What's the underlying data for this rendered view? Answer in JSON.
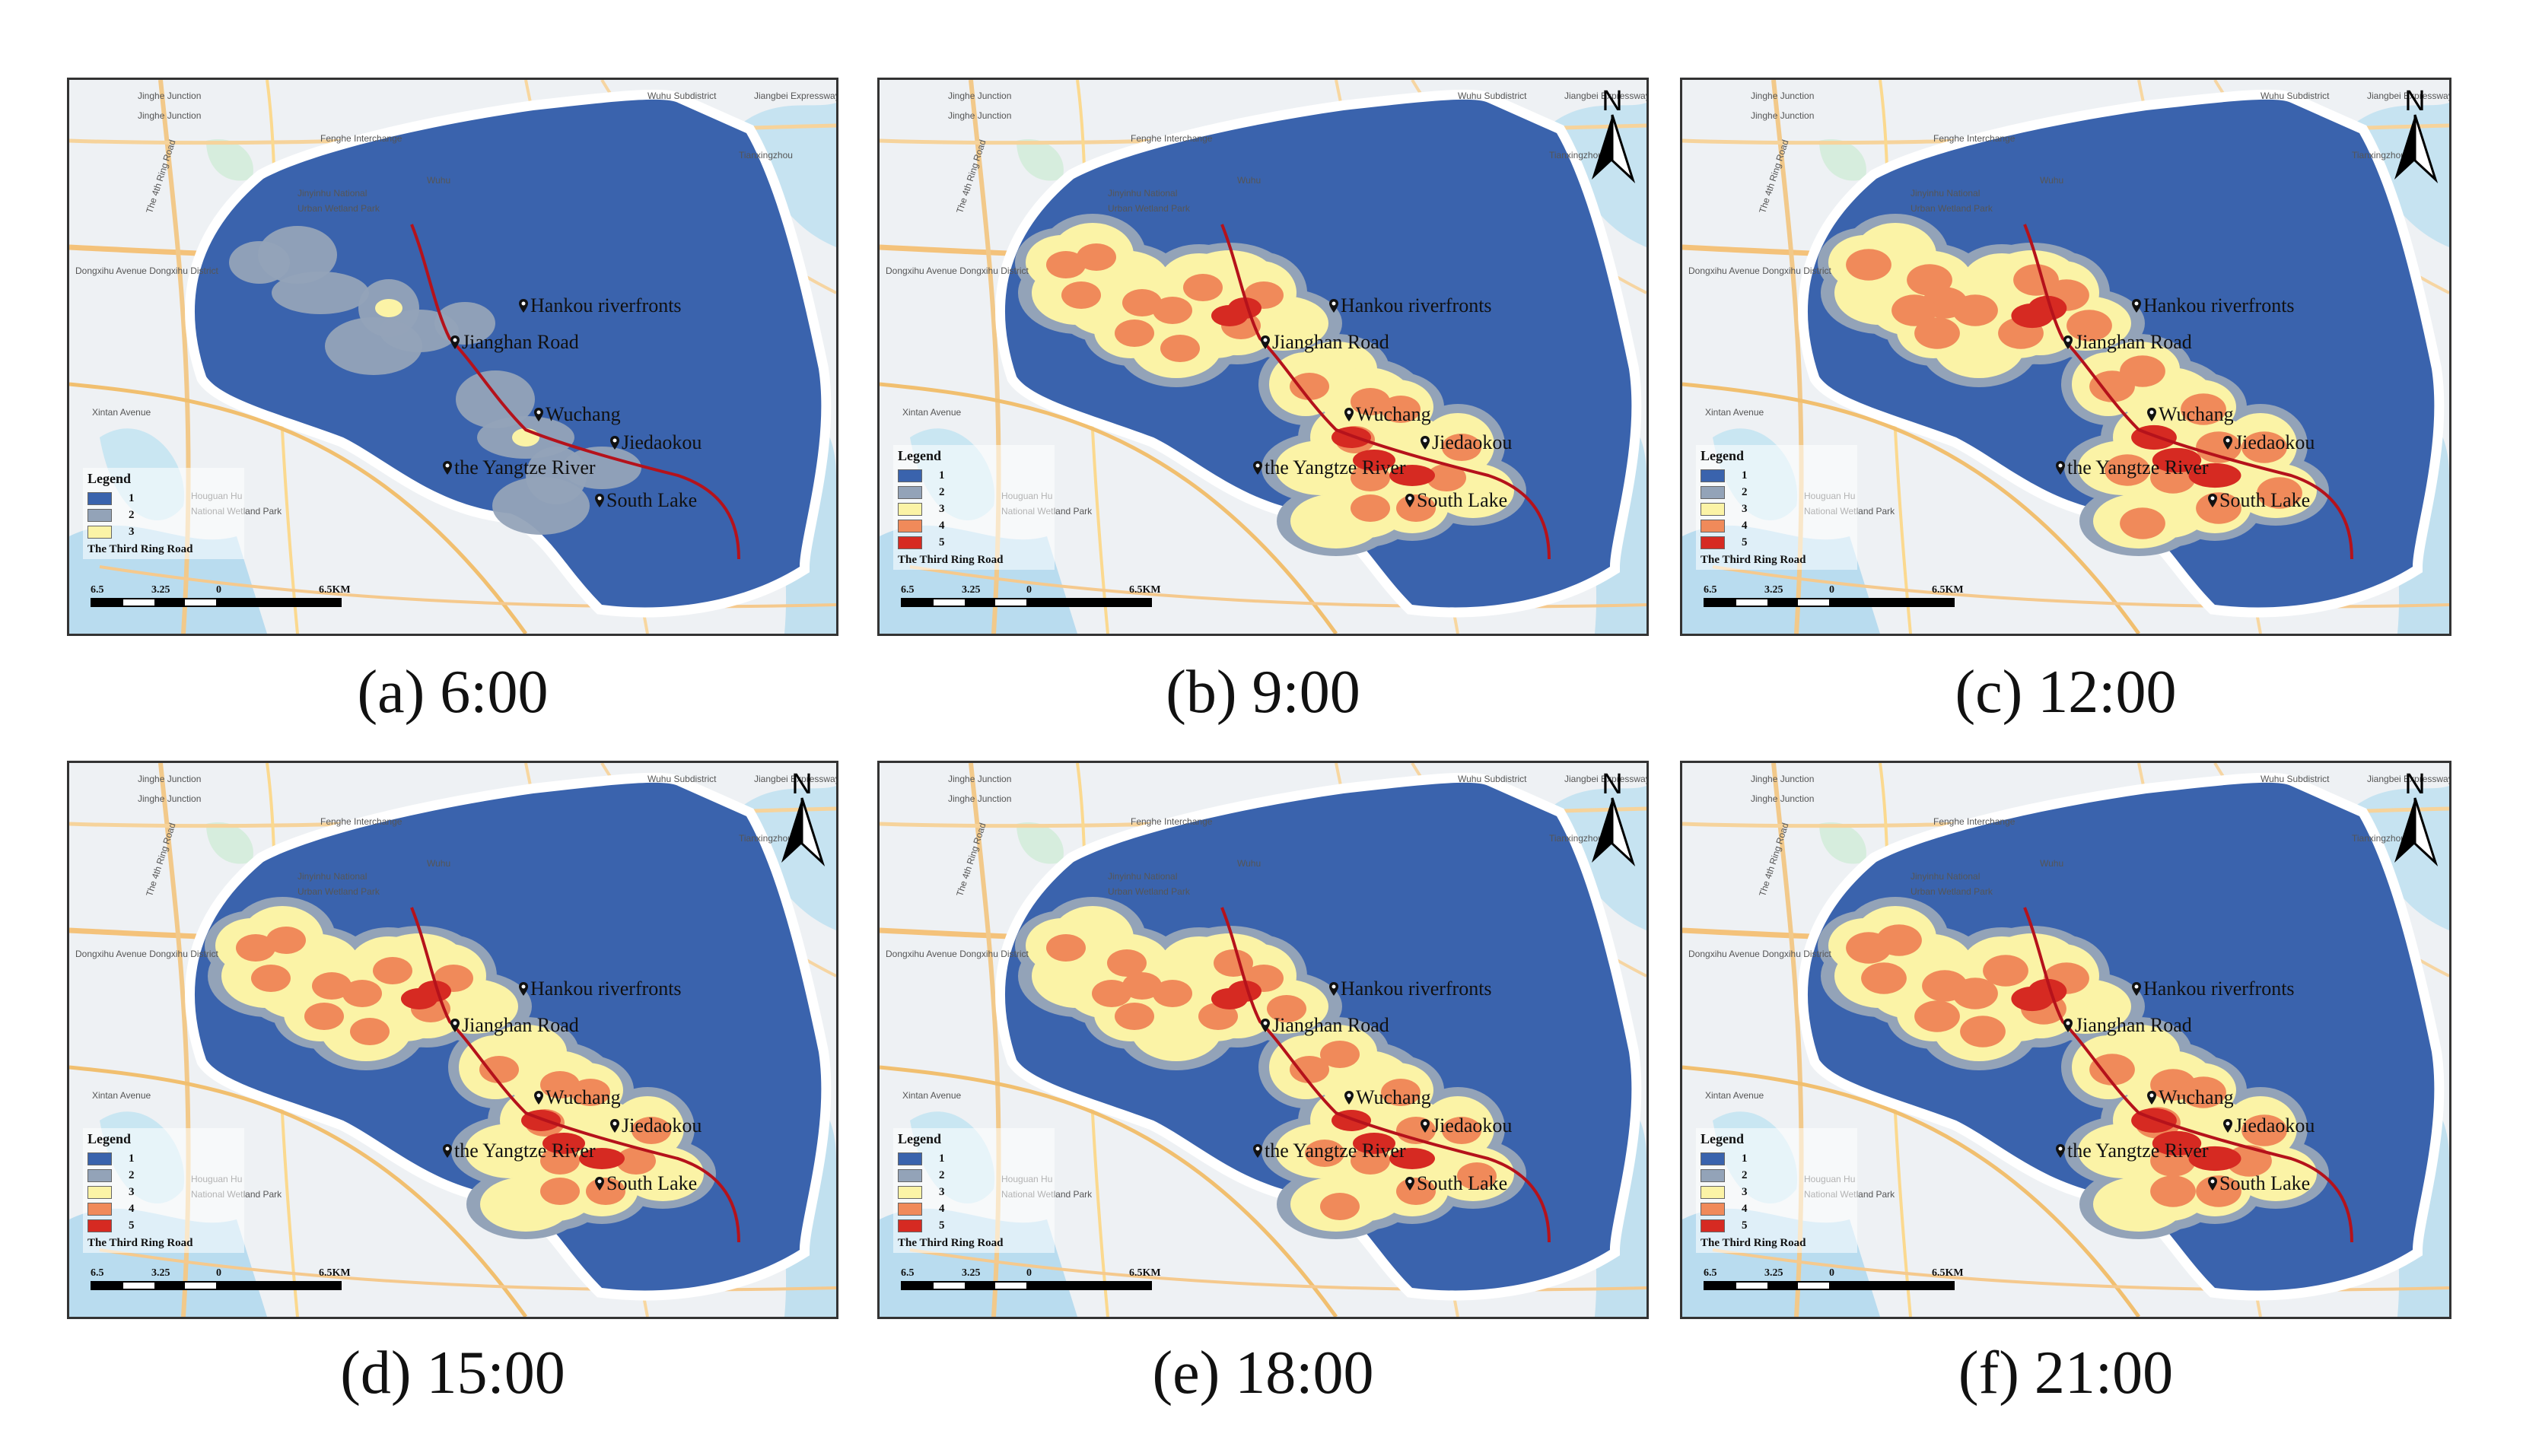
{
  "legend": {
    "title": "Legend",
    "classes": [
      "1",
      "2",
      "3",
      "4",
      "5"
    ],
    "colors": [
      "#3a63ad",
      "#93a3b8",
      "#fbf3a6",
      "#f08a5a",
      "#d62a22"
    ],
    "road_label": "The Third Ring Road"
  },
  "scale": {
    "left": "6.5",
    "mid": "3.25",
    "zero": "0",
    "right": "6.5KM"
  },
  "north_label": "N",
  "map_labels": {
    "jinghe1": "Jinghe Junction",
    "jinghe2": "Jinghe Junction",
    "fenghe": "Fenghe Interchange",
    "wuhu": "Wuhu Subdistrict",
    "jiangbei": "Jiangbei Expressway",
    "tianxing": "Tianxingzhou",
    "ring4": "The 4th Ring Road",
    "jinyinhu1": "Jinyinhu National",
    "jinyinhu2": "Urban Wetland Park",
    "dongxihu": "Dongxihu Avenue Dongxihu District",
    "houguan1": "Houguan Hu",
    "houguan2": "National Wetland Park",
    "xiuxian": "Xintan Avenue",
    "wuhu_short": "Wuhu"
  },
  "poi_labels": {
    "hankou": "Hankou riverfronts",
    "jianghan": "Jianghan Road",
    "wuchang": "Wuchang",
    "jiedaokou": "Jiedaokou",
    "yangtze": "the Yangtze River",
    "southlake": "South Lake"
  },
  "panels": [
    {
      "caption": "(a) 6:00",
      "max_class": 3,
      "north_arrow": false
    },
    {
      "caption": "(b) 9:00",
      "max_class": 5,
      "north_arrow": true
    },
    {
      "caption": "(c) 12:00",
      "max_class": 5,
      "north_arrow": true
    },
    {
      "caption": "(d) 15:00",
      "max_class": 5,
      "north_arrow": true
    },
    {
      "caption": "(e) 18:00",
      "max_class": 5,
      "north_arrow": true
    },
    {
      "caption": "(f) 21:00",
      "max_class": 5,
      "north_arrow": true
    }
  ]
}
